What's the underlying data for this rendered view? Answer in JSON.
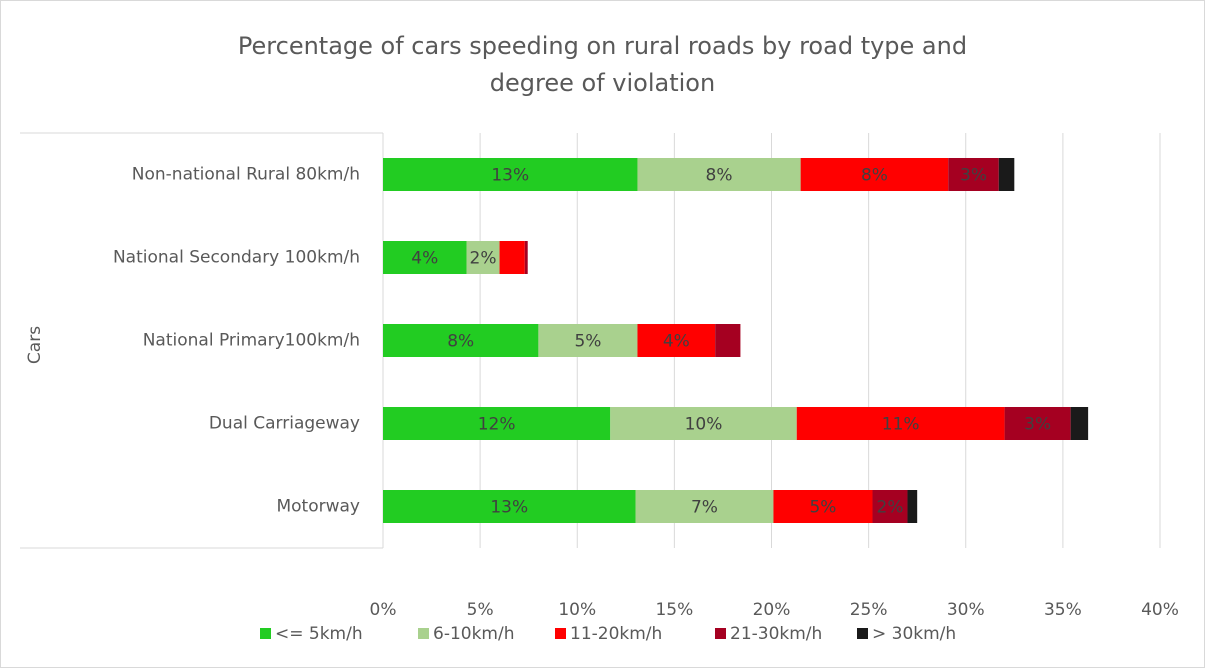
{
  "chart_data": {
    "type": "stacked_bar_horizontal",
    "title": "Percentage of cars speeding on rural roads by road type and degree of violation",
    "y_axis_label": "Cars",
    "categories": [
      "Non-national Rural 80km/h",
      "National Secondary 100km/h",
      "National Primary100km/h",
      "Dual Carriageway",
      "Motorway"
    ],
    "series": [
      {
        "name": "<= 5km/h",
        "color": "#22cc22",
        "values": [
          13.1,
          4.3,
          8.0,
          11.7,
          13.0
        ],
        "value_labels": [
          "13%",
          "4%",
          "8%",
          "12%",
          "13%"
        ]
      },
      {
        "name": "6-10km/h",
        "color": "#a9d18e",
        "values": [
          8.4,
          1.7,
          5.1,
          9.6,
          7.1
        ],
        "value_labels": [
          "8%",
          "2%",
          "5%",
          "10%",
          "7%"
        ]
      },
      {
        "name": "11-20km/h",
        "color": "#ff0000",
        "values": [
          7.6,
          1.3,
          4.0,
          10.7,
          5.1
        ],
        "value_labels": [
          "8%",
          null,
          "4%",
          "11%",
          "5%"
        ]
      },
      {
        "name": "21-30km/h",
        "color": "#a50021",
        "values": [
          2.6,
          0.15,
          1.3,
          3.4,
          1.8
        ],
        "value_labels": [
          "3%",
          null,
          null,
          "3%",
          "2%"
        ]
      },
      {
        "name": "> 30km/h",
        "color": "#1a1a1a",
        "values": [
          0.8,
          0,
          0,
          0.9,
          0.5
        ],
        "value_labels": [
          null,
          null,
          null,
          null,
          null
        ]
      }
    ],
    "xlim": [
      0,
      40
    ],
    "xticks": [
      {
        "value": 0,
        "label": "0%"
      },
      {
        "value": 5,
        "label": "5%"
      },
      {
        "value": 10,
        "label": "10%"
      },
      {
        "value": 15,
        "label": "15%"
      },
      {
        "value": 20,
        "label": "20%"
      },
      {
        "value": 25,
        "label": "25%"
      },
      {
        "value": 30,
        "label": "30%"
      },
      {
        "value": 35,
        "label": "35%"
      },
      {
        "value": 40,
        "label": "40%"
      }
    ],
    "grid": true,
    "legend": "bottom"
  }
}
